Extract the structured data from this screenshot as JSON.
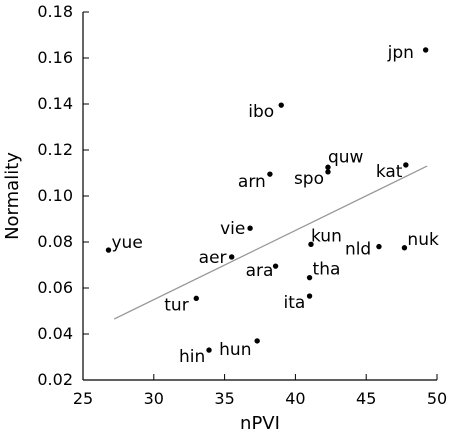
{
  "chart_data": {
    "type": "scatter",
    "title": "",
    "xlabel": "nPVI",
    "ylabel": "Normality",
    "xlim": [
      25,
      50
    ],
    "ylim": [
      0.02,
      0.18
    ],
    "x_ticks": [
      25,
      30,
      35,
      40,
      45,
      50
    ],
    "x_tick_labels": [
      "25",
      "30",
      "35",
      "40",
      "45",
      "50"
    ],
    "y_ticks": [
      0.02,
      0.04,
      0.06,
      0.08,
      0.1,
      0.12,
      0.14,
      0.16,
      0.18
    ],
    "y_tick_labels": [
      "0.02",
      "0.04",
      "0.06",
      "0.08",
      "0.10",
      "0.12",
      "0.14",
      "0.16",
      "0.18"
    ],
    "grid": false,
    "legend": "none",
    "colors": {
      "points": "#000000",
      "trend_line": "#999999",
      "axes": "#000000"
    },
    "points": [
      {
        "label": "jpn",
        "x": 49.2,
        "y": 0.1635
      },
      {
        "label": "ibo",
        "x": 39.0,
        "y": 0.1395
      },
      {
        "label": "quw",
        "x": 42.3,
        "y": 0.1125
      },
      {
        "label": "spo",
        "x": 42.3,
        "y": 0.1105
      },
      {
        "label": "kat",
        "x": 47.8,
        "y": 0.1135
      },
      {
        "label": "arn",
        "x": 38.2,
        "y": 0.1095
      },
      {
        "label": "vie",
        "x": 36.8,
        "y": 0.086
      },
      {
        "label": "kun",
        "x": 41.1,
        "y": 0.079
      },
      {
        "label": "nuk",
        "x": 47.7,
        "y": 0.0775
      },
      {
        "label": "nld",
        "x": 45.9,
        "y": 0.078
      },
      {
        "label": "yue",
        "x": 26.8,
        "y": 0.0765
      },
      {
        "label": "aer",
        "x": 35.5,
        "y": 0.0735
      },
      {
        "label": "ara",
        "x": 38.6,
        "y": 0.0695
      },
      {
        "label": "tha",
        "x": 41.0,
        "y": 0.0645
      },
      {
        "label": "tur",
        "x": 33.0,
        "y": 0.0555
      },
      {
        "label": "ita",
        "x": 41.0,
        "y": 0.0565
      },
      {
        "label": "hun",
        "x": 37.3,
        "y": 0.037
      },
      {
        "label": "hin",
        "x": 33.9,
        "y": 0.033
      }
    ],
    "trend_line": {
      "x": [
        27.2,
        49.3
      ],
      "y": [
        0.0465,
        0.113
      ]
    }
  }
}
